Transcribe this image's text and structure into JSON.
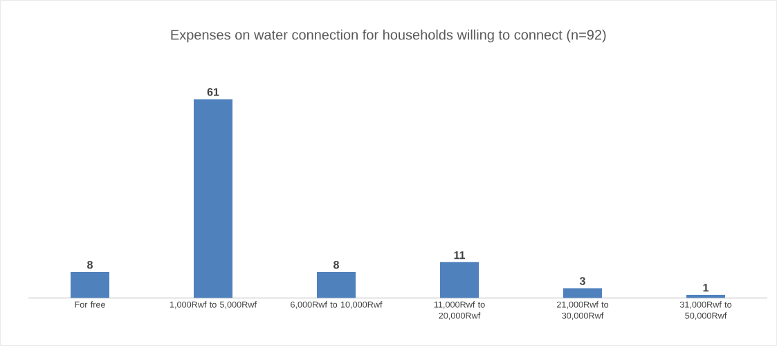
{
  "chart_data": {
    "type": "bar",
    "title": "Expenses on water connection for households willing to connect (n=92)",
    "categories": [
      "For free",
      "1,000Rwf to 5,000Rwf",
      "6,000Rwf to 10,000Rwf",
      "11,000Rwf to 20,000Rwf",
      "21,000Rwf to 30,000Rwf",
      "31,000Rwf to 50,000Rwf"
    ],
    "values": [
      8,
      61,
      8,
      11,
      3,
      1
    ],
    "color": "#4f81bd",
    "data_labels": true
  }
}
